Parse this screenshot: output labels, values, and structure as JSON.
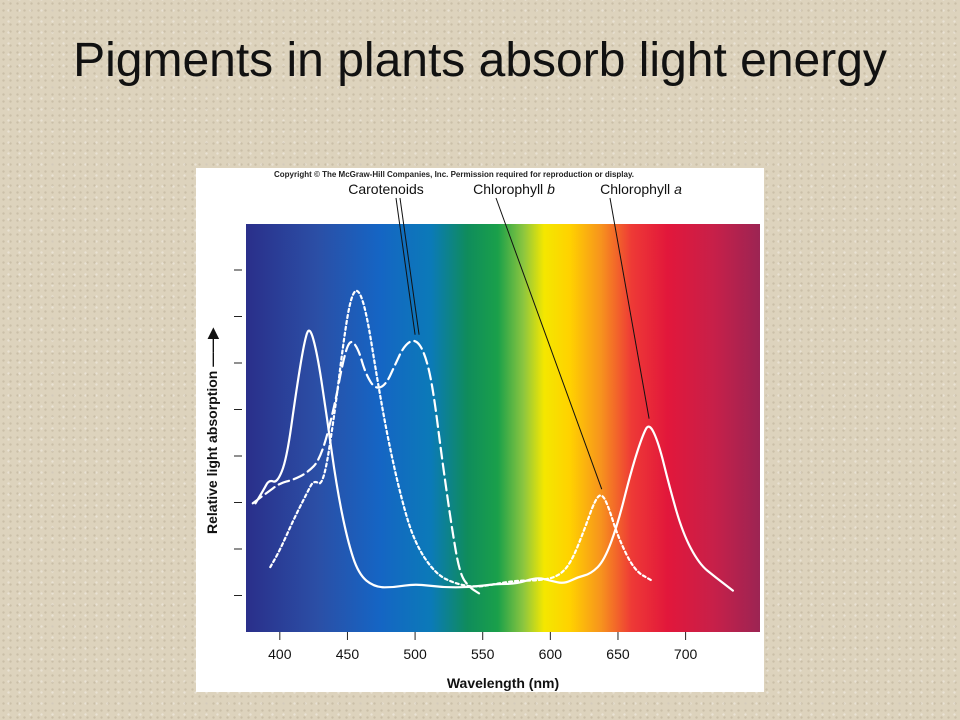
{
  "slide": {
    "title": "Pigments in plants absorb light energy"
  },
  "figure": {
    "copyright": "Copyright © The McGraw-Hill Companies, Inc. Permission required for reproduction or display."
  },
  "chart_data": {
    "type": "line",
    "title": "",
    "xlabel": "Wavelength (nm)",
    "ylabel": "Relative light absorption",
    "ylabel_arrow": "→",
    "xlim": [
      375,
      755
    ],
    "ylim": [
      0,
      100
    ],
    "x_ticks": [
      400,
      450,
      500,
      550,
      600,
      650,
      700
    ],
    "y_tick_count": 8,
    "grid": false,
    "background": "visible spectrum gradient (violet to red)",
    "series": [
      {
        "name": "Carotenoids",
        "style": "dashed",
        "color": "#ffffff",
        "points": [
          [
            380,
            27
          ],
          [
            390,
            30
          ],
          [
            400,
            33
          ],
          [
            410,
            34
          ],
          [
            420,
            36
          ],
          [
            430,
            40
          ],
          [
            440,
            55
          ],
          [
            447,
            70
          ],
          [
            452,
            76
          ],
          [
            458,
            73
          ],
          [
            463,
            66
          ],
          [
            470,
            61
          ],
          [
            478,
            62
          ],
          [
            485,
            68
          ],
          [
            492,
            74
          ],
          [
            500,
            76
          ],
          [
            507,
            72
          ],
          [
            513,
            62
          ],
          [
            520,
            40
          ],
          [
            527,
            20
          ],
          [
            533,
            6
          ],
          [
            540,
            2
          ],
          [
            548,
            0
          ]
        ]
      },
      {
        "name": "Chlorophyll b",
        "style": "dotted",
        "color": "#ffffff",
        "points": [
          [
            393,
            8
          ],
          [
            400,
            13
          ],
          [
            410,
            22
          ],
          [
            420,
            30
          ],
          [
            425,
            34
          ],
          [
            432,
            32
          ],
          [
            440,
            52
          ],
          [
            448,
            78
          ],
          [
            453,
            89
          ],
          [
            458,
            91
          ],
          [
            464,
            84
          ],
          [
            472,
            64
          ],
          [
            480,
            46
          ],
          [
            490,
            28
          ],
          [
            500,
            15
          ],
          [
            515,
            6
          ],
          [
            530,
            3
          ],
          [
            545,
            2
          ],
          [
            560,
            3
          ],
          [
            575,
            4
          ],
          [
            590,
            4
          ],
          [
            605,
            5
          ],
          [
            615,
            9
          ],
          [
            625,
            19
          ],
          [
            633,
            28
          ],
          [
            638,
            30
          ],
          [
            643,
            26
          ],
          [
            650,
            17
          ],
          [
            662,
            7
          ],
          [
            675,
            4
          ]
        ]
      },
      {
        "name": "Chlorophyll a",
        "style": "solid",
        "color": "#ffffff",
        "points": [
          [
            382,
            27
          ],
          [
            388,
            31
          ],
          [
            392,
            34
          ],
          [
            398,
            33
          ],
          [
            405,
            40
          ],
          [
            412,
            60
          ],
          [
            418,
            75
          ],
          [
            422,
            80
          ],
          [
            428,
            71
          ],
          [
            435,
            52
          ],
          [
            442,
            32
          ],
          [
            450,
            16
          ],
          [
            458,
            6
          ],
          [
            470,
            2
          ],
          [
            485,
            2
          ],
          [
            500,
            3
          ],
          [
            520,
            2
          ],
          [
            540,
            2
          ],
          [
            560,
            3
          ],
          [
            575,
            3
          ],
          [
            590,
            5
          ],
          [
            600,
            4
          ],
          [
            610,
            3
          ],
          [
            620,
            5
          ],
          [
            630,
            6
          ],
          [
            640,
            10
          ],
          [
            650,
            21
          ],
          [
            660,
            37
          ],
          [
            668,
            47
          ],
          [
            673,
            51
          ],
          [
            680,
            45
          ],
          [
            688,
            32
          ],
          [
            698,
            18
          ],
          [
            710,
            9
          ],
          [
            722,
            5
          ],
          [
            735,
            1
          ]
        ]
      }
    ]
  }
}
